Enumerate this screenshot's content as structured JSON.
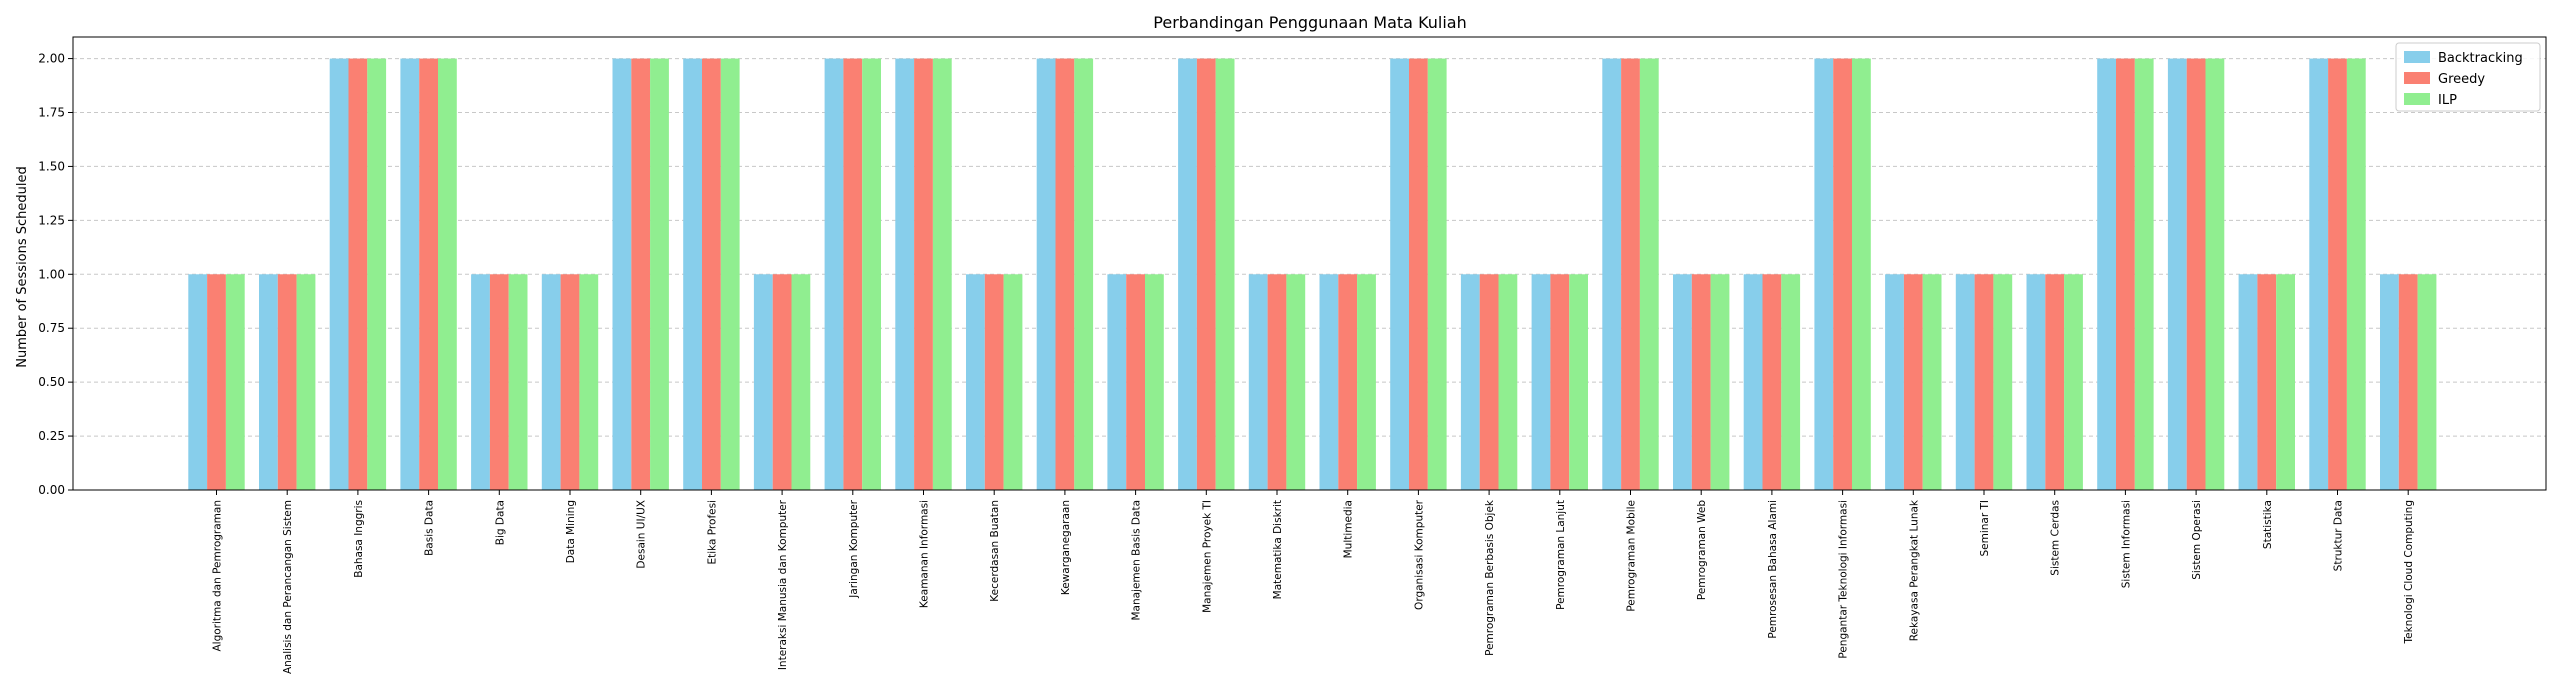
{
  "chart_data": {
    "type": "bar",
    "title": "Perbandingan Penggunaan Mata Kuliah",
    "xlabel": "",
    "ylabel": "Number of Sessions Scheduled",
    "ylim": [
      0,
      2.1
    ],
    "yticks": [
      "0.00",
      "0.25",
      "0.50",
      "0.75",
      "1.00",
      "1.25",
      "1.50",
      "1.75",
      "2.00"
    ],
    "grid": "y-dashed",
    "legend_position": "top-right",
    "categories": [
      "Algoritma dan Pemrograman",
      "Analisis dan Perancangan Sistem",
      "Bahasa Inggris",
      "Basis Data",
      "Big Data",
      "Data Mining",
      "Desain UI/UX",
      "Etika Profesi",
      "Interaksi Manusia dan Komputer",
      "Jaringan Komputer",
      "Keamanan Informasi",
      "Kecerdasan Buatan",
      "Kewarganegaraan",
      "Manajemen Basis Data",
      "Manajemen Proyek TI",
      "Matematika Diskrit",
      "Multimedia",
      "Organisasi Komputer",
      "Pemrograman Berbasis Objek",
      "Pemrograman Lanjut",
      "Pemrograman Mobile",
      "Pemrograman Web",
      "Pemrosesan Bahasa Alami",
      "Pengantar Teknologi Informasi",
      "Rekayasa Perangkat Lunak",
      "Seminar TI",
      "Sistem Cerdas",
      "Sistem Informasi",
      "Sistem Operasi",
      "Statistika",
      "Struktur Data",
      "Teknologi Cloud Computing"
    ],
    "series": [
      {
        "name": "Backtracking",
        "color": "#87ceeb",
        "values": [
          1,
          1,
          2,
          2,
          1,
          1,
          2,
          2,
          1,
          2,
          2,
          1,
          2,
          1,
          2,
          1,
          1,
          2,
          1,
          1,
          2,
          1,
          1,
          2,
          1,
          1,
          1,
          2,
          2,
          1,
          2,
          1
        ]
      },
      {
        "name": "Greedy",
        "color": "#fa8072",
        "values": [
          1,
          1,
          2,
          2,
          1,
          1,
          2,
          2,
          1,
          2,
          2,
          1,
          2,
          1,
          2,
          1,
          1,
          2,
          1,
          1,
          2,
          1,
          1,
          2,
          1,
          1,
          1,
          2,
          2,
          1,
          2,
          1
        ]
      },
      {
        "name": "ILP",
        "color": "#90ee90",
        "values": [
          1,
          1,
          2,
          2,
          1,
          1,
          2,
          2,
          1,
          2,
          2,
          1,
          2,
          1,
          2,
          1,
          1,
          2,
          1,
          1,
          2,
          1,
          1,
          2,
          1,
          1,
          1,
          2,
          2,
          1,
          2,
          1
        ]
      }
    ]
  }
}
